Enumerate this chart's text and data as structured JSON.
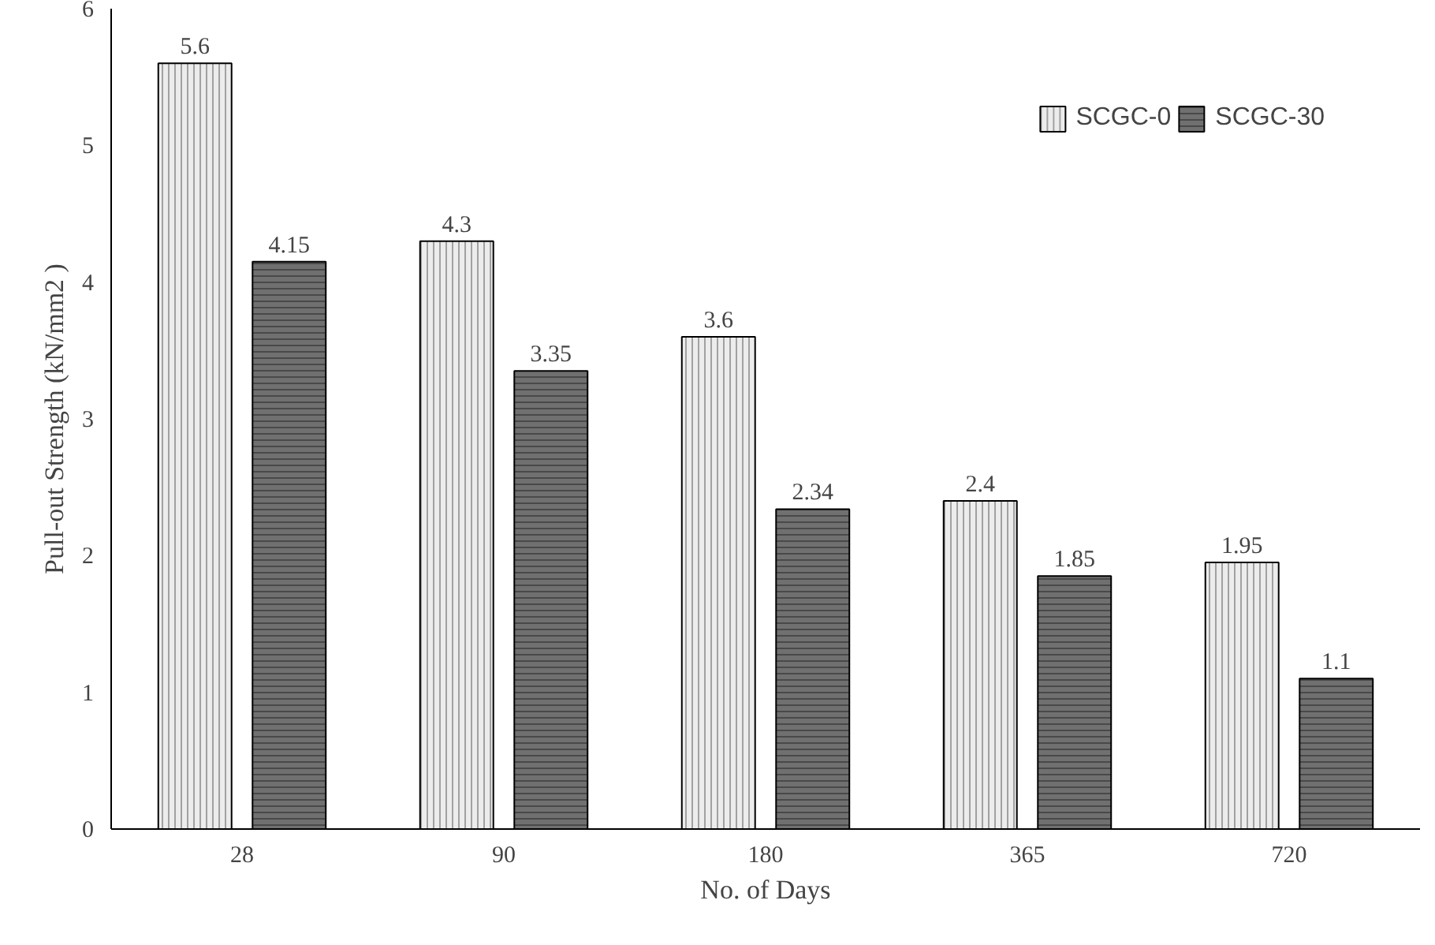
{
  "chart_data": {
    "type": "bar",
    "xlabel": "No. of Days",
    "ylabel": "Pull-out Strength (kN/mm2 )",
    "categories": [
      "28",
      "90",
      "180",
      "365",
      "720"
    ],
    "series": [
      {
        "name": "SCGC-0",
        "color": "#ececec",
        "values": [
          5.6,
          4.3,
          3.6,
          2.4,
          1.95
        ]
      },
      {
        "name": "SCGC-30",
        "color": "#707070",
        "values": [
          4.15,
          3.35,
          2.34,
          1.85,
          1.1
        ]
      }
    ],
    "ylim": [
      0,
      6
    ],
    "yticks": [
      0,
      1,
      2,
      3,
      4,
      5,
      6
    ],
    "grid": false,
    "legend": "top right",
    "data_labels": true
  }
}
